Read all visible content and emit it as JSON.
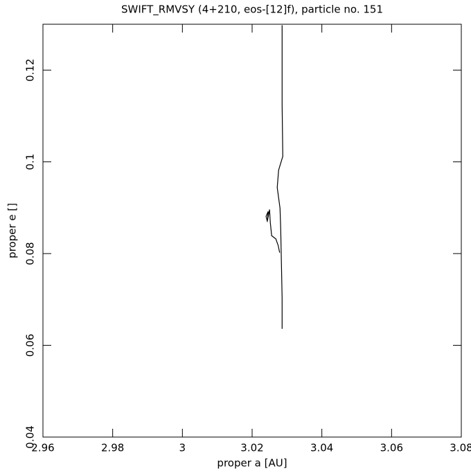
{
  "chart_data": {
    "type": "line",
    "title": "SWIFT_RMVSY (4+210, eos-[12]f), particle no. 151",
    "x_label": "proper a [AU]",
    "y_label": "proper e []",
    "color": "#000000",
    "x": [
      3.0286,
      3.0286,
      3.0288,
      3.0276,
      3.0272,
      3.028,
      3.0282,
      3.0284,
      3.0286,
      3.0286,
      null,
      3.0244,
      3.024,
      3.0246,
      3.0244,
      3.025,
      3.0252,
      3.0256,
      3.0268,
      3.0275,
      3.0279
    ],
    "y": [
      0.1298,
      0.1125,
      0.1012,
      0.0982,
      0.0944,
      0.0899,
      0.0854,
      0.0779,
      0.0704,
      0.0636,
      null,
      0.0869,
      0.0881,
      0.0892,
      0.0872,
      0.0896,
      0.0869,
      0.0839,
      0.0832,
      0.0817,
      0.0802
    ],
    "xlim": [
      2.96,
      3.08
    ],
    "ylim": [
      0.04,
      0.13
    ],
    "xticks": [
      2.96,
      2.98,
      3,
      3.02,
      3.04,
      3.06,
      3.08
    ],
    "yticks": [
      0.04,
      0.06,
      0.08,
      0.1,
      0.12
    ]
  }
}
